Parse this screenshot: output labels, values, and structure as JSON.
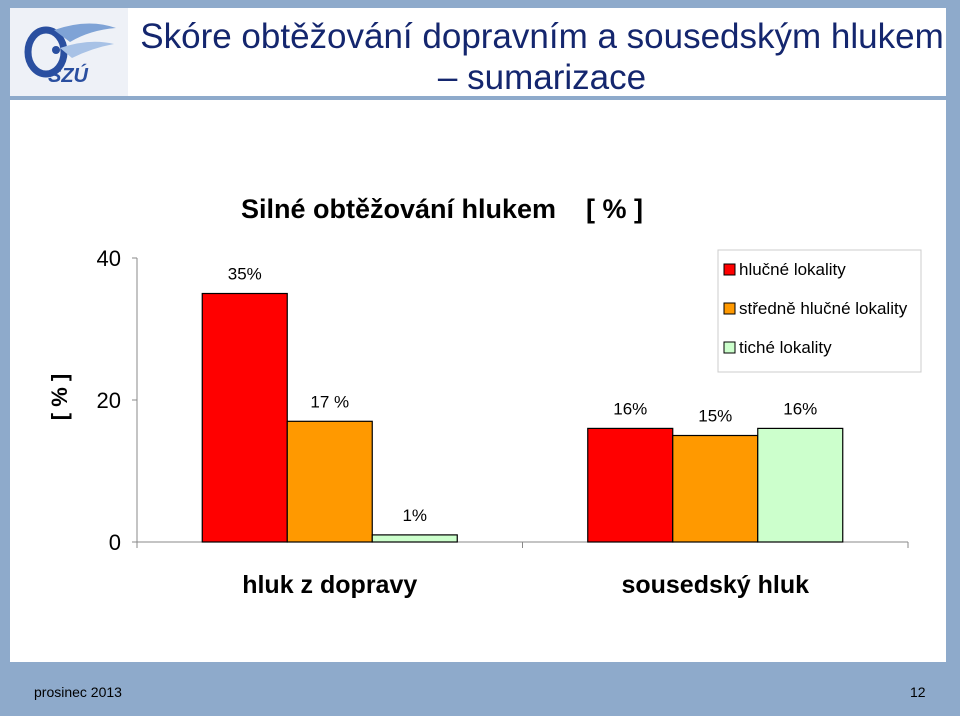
{
  "header": {
    "title": "Skóre obtěžování dopravním a sousedským hlukem – sumarizace",
    "logo_text": "SZÚ"
  },
  "footer": {
    "date": "prosinec 2013",
    "page": "12"
  },
  "chart_data": {
    "type": "bar",
    "title": "Silné obtěžování hlukem    [ % ]",
    "ylabel": "[ % ]",
    "xlabel": "",
    "ylim": [
      0,
      40
    ],
    "yticks": [
      "0",
      "20",
      "40"
    ],
    "categories": [
      "hluk z dopravy",
      "sousedský hluk"
    ],
    "series": [
      {
        "name": "hlučné lokality",
        "color": "#ff0000",
        "values": [
          35,
          16
        ],
        "labels": [
          "35%",
          "16%"
        ]
      },
      {
        "name": "středně hlučné lokality",
        "color": "#ff9900",
        "values": [
          17,
          15
        ],
        "labels": [
          "17 %",
          "15%"
        ]
      },
      {
        "name": "tiché lokality",
        "color": "#ccffcc",
        "values": [
          1,
          16
        ],
        "labels": [
          "1%",
          "16%"
        ]
      }
    ],
    "legend_position": "top-right",
    "grid": false
  }
}
